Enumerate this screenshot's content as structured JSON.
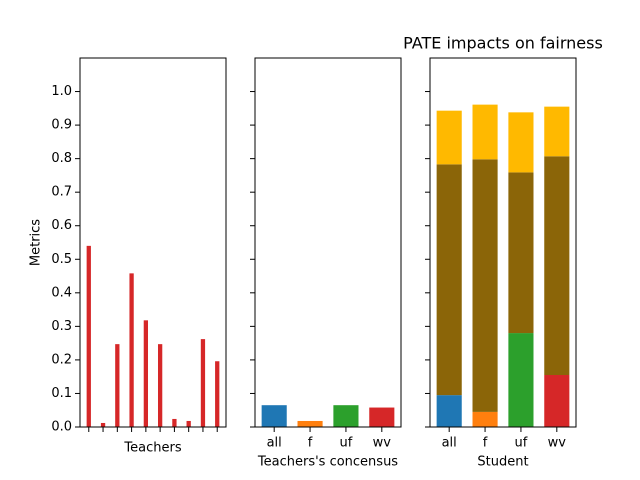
{
  "chart_data": [
    {
      "type": "bar",
      "xlabel": "Teachers",
      "ylabel": "Metrics",
      "categories": [
        null,
        null,
        null,
        null,
        null,
        null,
        null,
        null,
        null,
        null
      ],
      "series": [
        {
          "color": "#d62728",
          "values": [
            0.54,
            0.012,
            0.247,
            0.458,
            0.318,
            0.247,
            0.024,
            0.018,
            0.262,
            0.196
          ]
        }
      ],
      "ylim": [
        0,
        1.1
      ],
      "yticks": [
        {
          "value": 0,
          "label": "0.0"
        },
        0.1,
        0.2,
        0.3,
        0.4,
        0.5,
        0.6,
        0.7,
        0.8,
        0.9,
        {
          "value": 1,
          "label": "1.0"
        }
      ],
      "ytick_labels": true
    },
    {
      "type": "bar",
      "xlabel": "Teachers's concensus",
      "categories": [
        "all",
        "f",
        "uf",
        "wv"
      ],
      "series": [
        {
          "colors": [
            "#1f77b4",
            "#ff7f0e",
            "#2ca02c",
            "#d62728"
          ],
          "values": [
            0.065,
            0.018,
            0.065,
            0.058
          ]
        }
      ],
      "ylim": [
        0,
        1.1
      ],
      "yticks": [
        0,
        0.1,
        0.2,
        0.3,
        0.4,
        0.5,
        0.6,
        0.7,
        0.8,
        0.9,
        1
      ],
      "ytick_labels": false
    },
    {
      "type": "stacked_bar",
      "title": "PATE impacts on fairness",
      "xlabel": "Student",
      "categories": [
        "all",
        "f",
        "uf",
        "wv"
      ],
      "series": [
        {
          "colors": [
            "#1f77b4",
            "#ff7f0e",
            "#2ca02c",
            "#d62728"
          ],
          "values": [
            0.095,
            0.045,
            0.28,
            0.155
          ]
        },
        {
          "color": "#8b6508",
          "values": [
            0.688,
            0.753,
            0.479,
            0.652
          ]
        },
        {
          "color": "#ffb900",
          "values": [
            0.16,
            0.163,
            0.179,
            0.148
          ]
        }
      ],
      "ylim": [
        0,
        1.1
      ],
      "yticks": [
        0,
        0.1,
        0.2,
        0.3,
        0.4,
        0.5,
        0.6,
        0.7,
        0.8,
        0.9,
        1
      ],
      "ytick_labels": false
    }
  ]
}
